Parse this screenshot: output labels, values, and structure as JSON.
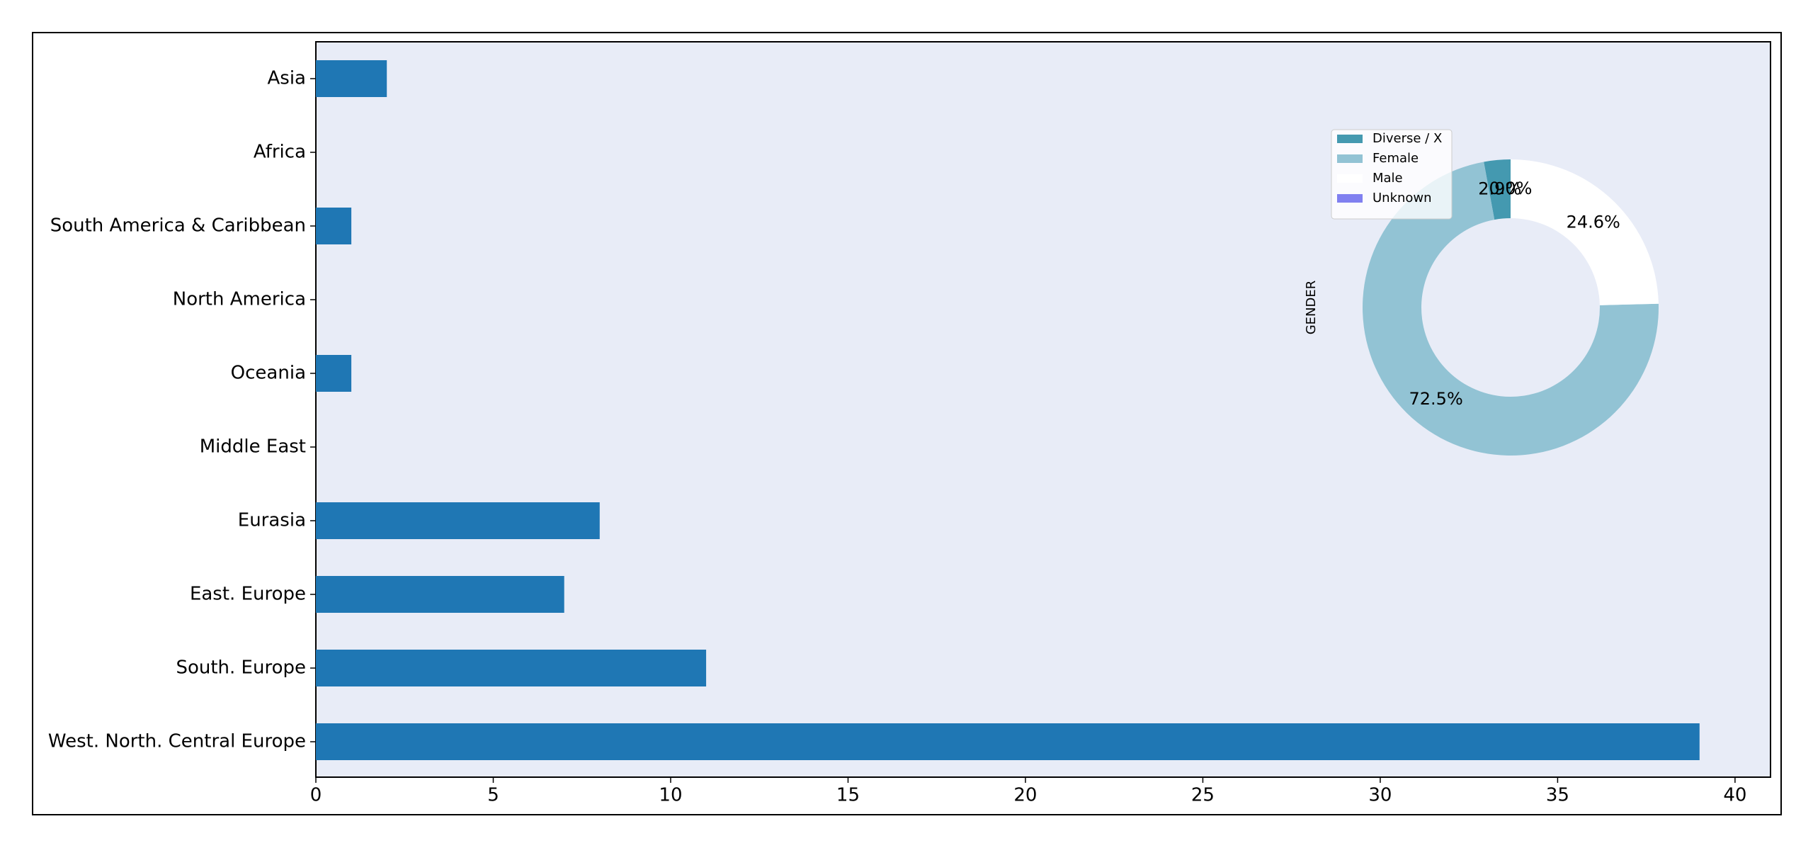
{
  "chart_data": [
    {
      "type": "barh",
      "categories": [
        "Asia",
        "Africa",
        "South America & Caribbean",
        "North America",
        "Oceania",
        "Middle East",
        "Eurasia",
        "East. Europe",
        "South. Europe",
        "West. North. Central Europe"
      ],
      "values": [
        2,
        0,
        1,
        0,
        1,
        0,
        8,
        7,
        11,
        39
      ],
      "color": "#1f77b4",
      "xlim": [
        0,
        41
      ],
      "xticks": [
        0,
        5,
        10,
        15,
        20,
        25,
        30,
        35,
        40
      ]
    },
    {
      "type": "pie",
      "ylabel": "GENDER",
      "categories": [
        "Diverse / X",
        "Female",
        "Male",
        "Unknown"
      ],
      "values": [
        2.9,
        72.5,
        24.6,
        0.0
      ],
      "value_labels": [
        "2.9%",
        "72.5%",
        "24.6%",
        "0.0%"
      ],
      "colors": [
        "#4499b0",
        "#92c3d4",
        "#ffffff",
        "#8080f0"
      ]
    }
  ]
}
